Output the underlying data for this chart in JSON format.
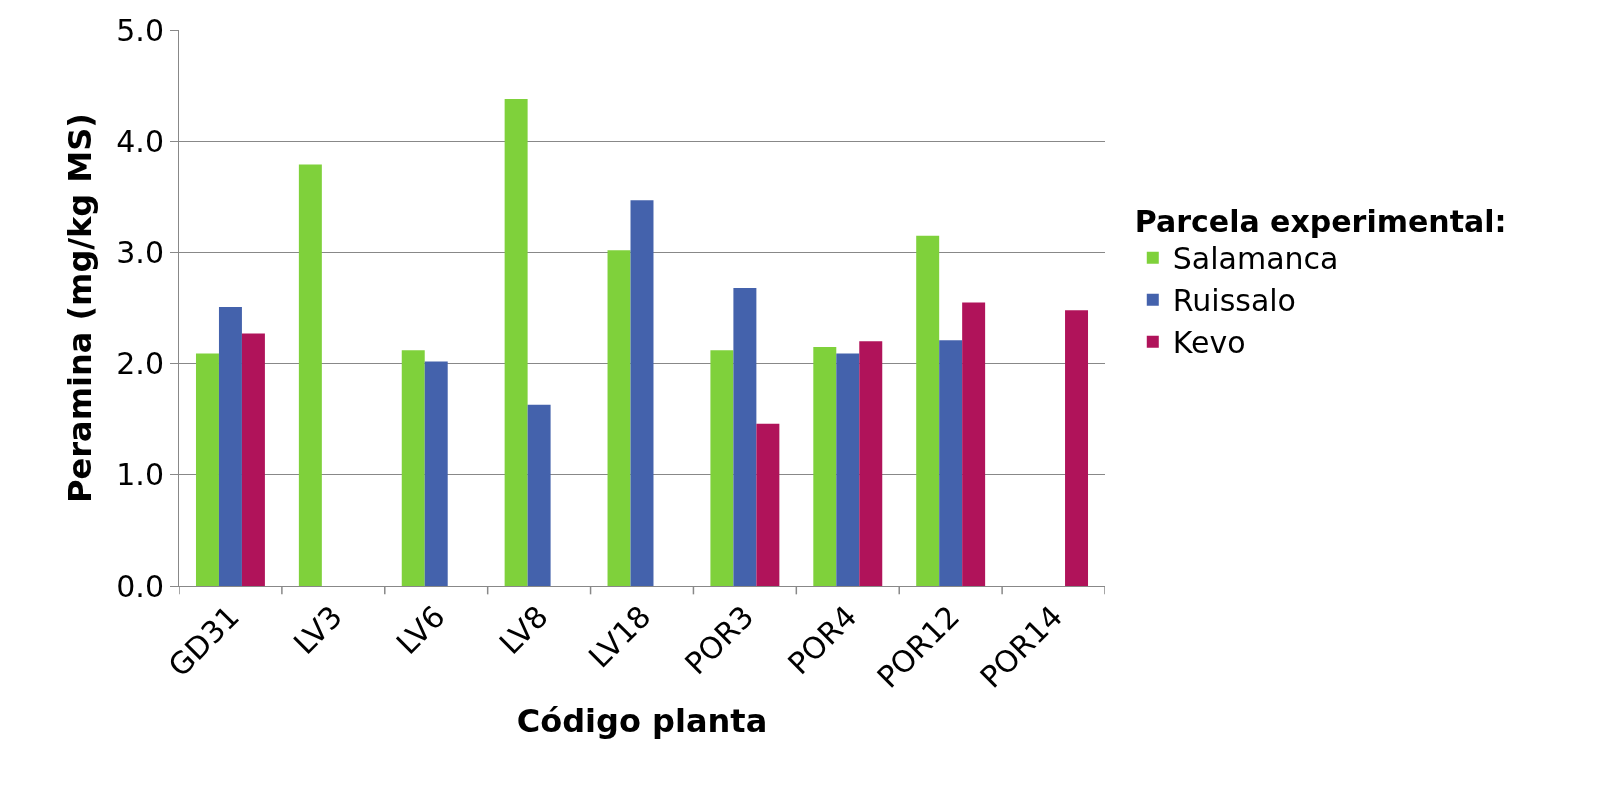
{
  "chart_data": {
    "type": "bar",
    "xlabel": "Código planta",
    "ylabel": "Peramina (mg/kg MS)",
    "legend_title": "Parcela experimental:",
    "categories": [
      "GD31",
      "LV3",
      "LV6",
      "LV8",
      "LV18",
      "POR3",
      "POR4",
      "POR12",
      "POR14"
    ],
    "series": [
      {
        "name": "Salamanca",
        "color": "#7fd13b",
        "values": [
          2.09,
          3.79,
          2.12,
          4.38,
          3.02,
          2.12,
          2.15,
          3.15,
          null
        ]
      },
      {
        "name": "Ruissalo",
        "color": "#4462ac",
        "values": [
          2.51,
          null,
          2.02,
          1.63,
          3.47,
          2.68,
          2.09,
          2.21,
          null
        ]
      },
      {
        "name": "Kevo",
        "color": "#b0135a",
        "values": [
          2.27,
          null,
          null,
          null,
          null,
          1.46,
          2.2,
          2.55,
          2.48
        ]
      }
    ],
    "ylim": [
      0,
      5
    ],
    "yticks": [
      {
        "value": 0,
        "label": "0.0"
      },
      {
        "value": 1,
        "label": "1.0"
      },
      {
        "value": 2,
        "label": "2.0"
      },
      {
        "value": 3,
        "label": "3.0"
      },
      {
        "value": 4,
        "label": "4.0"
      },
      {
        "value": 5,
        "label": "5.0"
      }
    ],
    "grid": "y",
    "legend": "right"
  }
}
